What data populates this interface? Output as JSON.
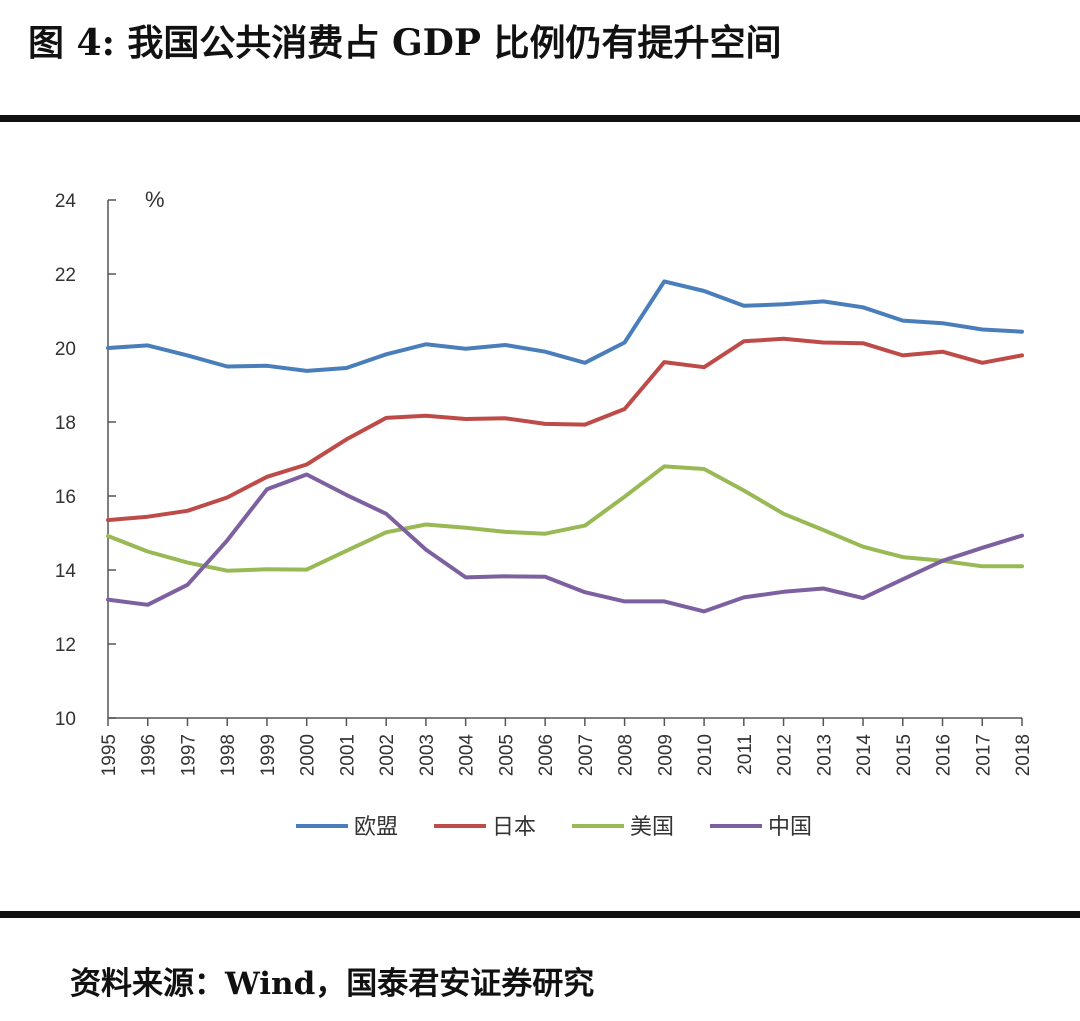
{
  "figure": {
    "title": "图 4:  我国公共消费占 GDP 比例仍有提升空间",
    "source": "资料来源：Wind，国泰君安证券研究"
  },
  "chart_data": {
    "type": "line",
    "title": "",
    "xlabel": "",
    "ylabel": "%",
    "ylim": [
      10,
      24
    ],
    "yticks": [
      10,
      12,
      14,
      16,
      18,
      20,
      22,
      24
    ],
    "grid": false,
    "legend_position": "bottom",
    "categories": [
      "1995",
      "1996",
      "1997",
      "1998",
      "1999",
      "2000",
      "2001",
      "2002",
      "2003",
      "2004",
      "2005",
      "2006",
      "2007",
      "2008",
      "2009",
      "2010",
      "2011",
      "2012",
      "2013",
      "2014",
      "2015",
      "2016",
      "2017",
      "2018"
    ],
    "series": [
      {
        "name": "欧盟",
        "color": "#4a7ebb",
        "values": [
          20.0,
          20.07,
          19.8,
          19.5,
          19.52,
          19.38,
          19.46,
          19.83,
          20.1,
          19.98,
          20.08,
          19.9,
          19.6,
          20.15,
          21.8,
          21.54,
          21.14,
          21.18,
          21.26,
          21.1,
          20.74,
          20.67,
          20.5,
          20.44
        ]
      },
      {
        "name": "日本",
        "color": "#be4b48",
        "values": [
          15.35,
          15.44,
          15.6,
          15.96,
          16.52,
          16.85,
          17.53,
          18.11,
          18.17,
          18.08,
          18.1,
          17.95,
          17.93,
          18.35,
          19.62,
          19.48,
          20.18,
          20.25,
          20.15,
          20.13,
          19.8,
          19.9,
          19.6,
          19.8
        ]
      },
      {
        "name": "美国",
        "color": "#98b954",
        "values": [
          14.92,
          14.5,
          14.2,
          13.98,
          14.02,
          14.01,
          14.52,
          15.02,
          15.23,
          15.14,
          15.03,
          14.98,
          15.2,
          15.98,
          16.8,
          16.73,
          16.15,
          15.52,
          15.08,
          14.63,
          14.35,
          14.25,
          14.1,
          14.1
        ]
      },
      {
        "name": "中国",
        "color": "#7d60a0",
        "values": [
          13.2,
          13.06,
          13.6,
          14.8,
          16.18,
          16.58,
          16.03,
          15.52,
          14.55,
          13.8,
          13.83,
          13.82,
          13.4,
          13.15,
          13.15,
          12.88,
          13.26,
          13.41,
          13.5,
          13.24,
          13.75,
          14.25,
          14.6,
          14.93
        ]
      }
    ]
  }
}
